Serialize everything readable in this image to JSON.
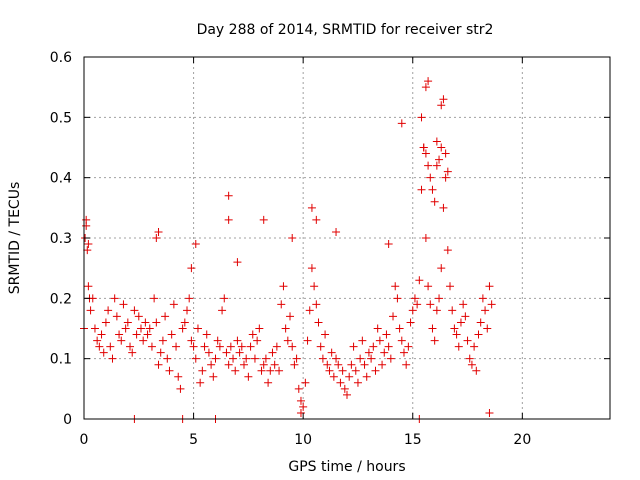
{
  "chart_data": {
    "type": "scatter",
    "title": "Day 288 of 2014, SRMTID for receiver str2",
    "xlabel": "GPS time / hours",
    "ylabel": "SRMTID / TECUs",
    "xlim": [
      0,
      24
    ],
    "ylim": [
      0,
      0.6
    ],
    "xticks": [
      0,
      5,
      10,
      15,
      20
    ],
    "xtick_labels": [
      "0",
      "5",
      "10",
      "15",
      "20"
    ],
    "yticks": [
      0,
      0.1,
      0.2,
      0.3,
      0.4,
      0.5,
      0.6
    ],
    "ytick_labels": [
      "0",
      "0.1",
      "0.2",
      "0.3",
      "0.4",
      "0.5",
      "0.6"
    ],
    "grid": true,
    "marker": "+",
    "marker_color": "#e00000",
    "series": [
      {
        "name": "str2",
        "x": [
          0.0,
          0.1,
          0.15,
          0.2,
          0.25,
          0.3,
          0.4,
          0.5,
          0.6,
          0.7,
          0.8,
          0.9,
          1.0,
          1.1,
          1.2,
          1.3,
          1.4,
          1.5,
          1.6,
          1.7,
          1.8,
          1.9,
          2.0,
          2.1,
          2.2,
          2.3,
          2.4,
          2.5,
          2.6,
          2.7,
          2.8,
          2.9,
          3.0,
          3.1,
          3.2,
          3.3,
          3.4,
          3.5,
          3.6,
          3.7,
          3.8,
          3.9,
          4.0,
          4.1,
          4.2,
          4.3,
          4.4,
          4.5,
          4.6,
          4.7,
          4.8,
          4.9,
          5.0,
          5.1,
          5.2,
          5.3,
          5.4,
          5.5,
          5.6,
          5.7,
          5.8,
          5.9,
          6.0,
          6.1,
          6.2,
          6.3,
          6.4,
          6.5,
          6.6,
          6.7,
          6.8,
          6.9,
          7.0,
          7.1,
          7.2,
          7.3,
          7.4,
          7.5,
          7.6,
          7.7,
          7.8,
          7.9,
          8.0,
          8.1,
          8.2,
          8.3,
          8.4,
          8.5,
          8.6,
          8.7,
          8.8,
          8.9,
          9.0,
          9.1,
          9.2,
          9.3,
          9.4,
          9.5,
          9.6,
          9.7,
          9.8,
          9.9,
          10.0,
          10.1,
          10.2,
          10.3,
          10.4,
          10.5,
          10.6,
          10.7,
          10.8,
          10.9,
          11.0,
          11.1,
          11.2,
          11.3,
          11.4,
          11.5,
          11.6,
          11.7,
          11.8,
          11.9,
          12.0,
          12.1,
          12.2,
          12.3,
          12.4,
          12.5,
          12.6,
          12.7,
          12.8,
          12.9,
          13.0,
          13.1,
          13.2,
          13.3,
          13.4,
          13.5,
          13.6,
          13.7,
          13.8,
          13.9,
          14.0,
          14.1,
          14.2,
          14.3,
          14.4,
          14.5,
          14.6,
          14.7,
          14.8,
          14.9,
          15.0,
          15.1,
          15.2,
          15.3,
          15.4,
          15.5,
          15.6,
          15.7,
          15.8,
          15.9,
          16.0,
          16.1,
          16.2,
          16.3,
          16.4,
          16.5,
          16.6,
          16.7,
          16.8,
          16.9,
          17.0,
          17.1,
          17.2,
          17.3,
          17.4,
          17.5,
          17.6,
          17.7,
          17.8,
          17.9,
          18.0,
          18.1,
          18.2,
          18.3,
          18.4,
          18.5,
          18.6,
          0.05,
          0.1,
          0.2,
          3.3,
          3.4,
          4.9,
          5.1,
          6.6,
          6.6,
          7.0,
          8.2,
          9.5,
          10.4,
          10.6,
          11.5,
          13.9,
          14.5,
          15.4,
          15.5,
          15.6,
          15.7,
          15.8,
          15.9,
          16.0,
          16.1,
          16.2,
          16.3,
          16.4,
          16.5,
          16.6,
          15.6,
          15.7,
          16.1,
          16.3,
          2.3,
          4.5,
          6.0,
          9.9,
          15.3,
          18.5
        ],
        "y": [
          0.15,
          0.33,
          0.28,
          0.22,
          0.2,
          0.18,
          0.2,
          0.15,
          0.13,
          0.12,
          0.14,
          0.11,
          0.16,
          0.18,
          0.12,
          0.1,
          0.2,
          0.17,
          0.14,
          0.13,
          0.19,
          0.15,
          0.16,
          0.12,
          0.11,
          0.18,
          0.14,
          0.17,
          0.15,
          0.13,
          0.16,
          0.14,
          0.15,
          0.12,
          0.2,
          0.16,
          0.09,
          0.11,
          0.13,
          0.17,
          0.1,
          0.08,
          0.14,
          0.19,
          0.12,
          0.07,
          0.05,
          0.15,
          0.16,
          0.18,
          0.2,
          0.13,
          0.12,
          0.1,
          0.15,
          0.06,
          0.08,
          0.12,
          0.14,
          0.11,
          0.09,
          0.07,
          0.1,
          0.13,
          0.12,
          0.18,
          0.2,
          0.11,
          0.09,
          0.12,
          0.1,
          0.08,
          0.13,
          0.11,
          0.12,
          0.09,
          0.1,
          0.07,
          0.12,
          0.14,
          0.1,
          0.13,
          0.15,
          0.08,
          0.09,
          0.1,
          0.06,
          0.08,
          0.11,
          0.09,
          0.12,
          0.08,
          0.19,
          0.22,
          0.15,
          0.13,
          0.17,
          0.12,
          0.09,
          0.1,
          0.05,
          0.03,
          0.02,
          0.06,
          0.13,
          0.18,
          0.25,
          0.22,
          0.19,
          0.16,
          0.12,
          0.1,
          0.14,
          0.09,
          0.08,
          0.11,
          0.07,
          0.1,
          0.09,
          0.06,
          0.08,
          0.05,
          0.04,
          0.07,
          0.09,
          0.12,
          0.08,
          0.06,
          0.1,
          0.13,
          0.09,
          0.07,
          0.11,
          0.1,
          0.12,
          0.08,
          0.15,
          0.13,
          0.09,
          0.11,
          0.14,
          0.12,
          0.1,
          0.17,
          0.22,
          0.2,
          0.15,
          0.13,
          0.11,
          0.09,
          0.12,
          0.16,
          0.18,
          0.2,
          0.19,
          0.23,
          0.38,
          0.45,
          0.3,
          0.22,
          0.19,
          0.15,
          0.13,
          0.18,
          0.2,
          0.25,
          0.35,
          0.4,
          0.28,
          0.22,
          0.18,
          0.15,
          0.14,
          0.12,
          0.16,
          0.19,
          0.17,
          0.13,
          0.1,
          0.09,
          0.12,
          0.08,
          0.14,
          0.16,
          0.2,
          0.18,
          0.15,
          0.22,
          0.19,
          0.3,
          0.32,
          0.29,
          0.3,
          0.31,
          0.25,
          0.29,
          0.37,
          0.33,
          0.26,
          0.33,
          0.3,
          0.35,
          0.33,
          0.31,
          0.29,
          0.49,
          0.5,
          0.45,
          0.44,
          0.42,
          0.4,
          0.38,
          0.36,
          0.46,
          0.43,
          0.52,
          0.53,
          0.44,
          0.41,
          0.55,
          0.56,
          0.42,
          0.45,
          0.0,
          0.0,
          0.0,
          0.01,
          0.0,
          0.01
        ]
      }
    ]
  }
}
